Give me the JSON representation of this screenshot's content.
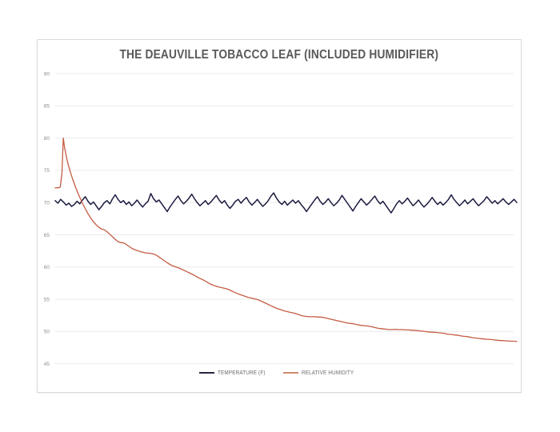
{
  "page": {
    "background": "#ffffff"
  },
  "card": {
    "border_color": "#dadada",
    "background": "#ffffff"
  },
  "chart_data": {
    "type": "line",
    "title": "THE DEAUVILLE TOBACCO LEAF (INCLUDED HUMIDIFIER)",
    "title_color": "#595959",
    "xlabel": "",
    "ylabel": "",
    "x_axis": {
      "tick_labels_visible": false,
      "domain_percent": [
        0,
        100
      ]
    },
    "y_axis": {
      "ticks": [
        90,
        85,
        80,
        75,
        70,
        65,
        60,
        55,
        50,
        45
      ],
      "range": [
        44.2,
        92.2
      ],
      "label_color": "#8c8c8c"
    },
    "grid": {
      "horizontal": true,
      "vertical": false,
      "color": "#ebebeb"
    },
    "legend": {
      "position": "bottom-center",
      "entries": [
        {
          "label": "TEMPERATURE (F)",
          "color": "#1b1b40",
          "swatch_color": "#26263f"
        },
        {
          "label": "RELATIVE HUMIDITY",
          "color": "#c45c44",
          "swatch_color": "#cf8a70"
        }
      ]
    },
    "series": [
      {
        "name": "TEMPERATURE (F)",
        "color": "#1b1b40",
        "stroke_width": 1.5,
        "x_mode": "even",
        "values": [
          70.3,
          69.9,
          70.5,
          70.1,
          69.6,
          69.9,
          69.4,
          69.7,
          70.2,
          69.8,
          70.4,
          70.9,
          70.2,
          69.7,
          70.1,
          69.5,
          68.9,
          69.4,
          70.0,
          70.3,
          69.8,
          70.6,
          71.2,
          70.5,
          70.0,
          70.3,
          69.7,
          70.1,
          69.5,
          69.9,
          70.4,
          69.8,
          69.3,
          69.8,
          70.2,
          71.4,
          70.6,
          70.1,
          70.4,
          69.8,
          69.2,
          68.6,
          69.3,
          69.9,
          70.5,
          71.0,
          70.3,
          69.8,
          70.2,
          70.7,
          71.3,
          70.6,
          70.0,
          69.5,
          69.9,
          70.3,
          69.7,
          70.1,
          70.6,
          71.1,
          70.4,
          69.9,
          70.3,
          69.6,
          69.1,
          69.6,
          70.2,
          70.5,
          69.9,
          70.4,
          70.8,
          70.1,
          69.6,
          70.0,
          70.5,
          69.9,
          69.4,
          69.8,
          70.3,
          71.0,
          71.5,
          70.7,
          70.1,
          69.7,
          70.2,
          69.6,
          70.0,
          70.4,
          69.9,
          70.3,
          69.7,
          69.2,
          68.6,
          69.2,
          69.8,
          70.4,
          70.9,
          70.2,
          69.7,
          70.1,
          70.6,
          70.0,
          69.5,
          69.9,
          70.4,
          71.1,
          70.5,
          69.9,
          69.3,
          68.7,
          69.4,
          70.0,
          70.6,
          70.1,
          69.6,
          70.0,
          70.5,
          71.0,
          70.3,
          69.8,
          70.2,
          69.6,
          69.0,
          68.4,
          69.1,
          69.8,
          70.3,
          69.8,
          70.2,
          70.7,
          70.1,
          69.5,
          69.9,
          70.4,
          69.8,
          69.3,
          69.7,
          70.2,
          70.8,
          70.2,
          69.7,
          70.1,
          69.6,
          70.0,
          70.5,
          71.2,
          70.5,
          70.0,
          69.5,
          69.9,
          70.4,
          69.8,
          70.2,
          70.6,
          70.0,
          69.5,
          69.9,
          70.3,
          70.9,
          70.4,
          69.9,
          70.3,
          69.8,
          70.2,
          70.6,
          70.1,
          69.7,
          70.1,
          70.5,
          70.0
        ]
      },
      {
        "name": "RELATIVE HUMIDITY",
        "color": "#c45c44",
        "stroke_width": 1.3,
        "x_mode": "pairs",
        "points": [
          [
            0,
            72.3
          ],
          [
            0.7,
            72.3
          ],
          [
            1.1,
            72.4
          ],
          [
            1.45,
            74.5
          ],
          [
            1.75,
            80.0
          ],
          [
            2.05,
            78.5
          ],
          [
            2.45,
            77.0
          ],
          [
            2.8,
            75.9
          ],
          [
            3.3,
            74.7
          ],
          [
            3.85,
            73.5
          ],
          [
            4.4,
            72.4
          ],
          [
            4.9,
            71.5
          ],
          [
            5.4,
            70.7
          ],
          [
            5.9,
            69.9
          ],
          [
            6.4,
            69.2
          ],
          [
            7.0,
            68.4
          ],
          [
            7.6,
            67.7
          ],
          [
            8.2,
            67.1
          ],
          [
            8.8,
            66.6
          ],
          [
            9.4,
            66.2
          ],
          [
            10.0,
            65.9
          ],
          [
            10.6,
            65.8
          ],
          [
            11.2,
            65.5
          ],
          [
            11.8,
            65.1
          ],
          [
            12.4,
            64.7
          ],
          [
            13.0,
            64.3
          ],
          [
            13.6,
            63.95
          ],
          [
            14.2,
            63.8
          ],
          [
            14.8,
            63.75
          ],
          [
            15.4,
            63.5
          ],
          [
            16.0,
            63.2
          ],
          [
            16.6,
            62.9
          ],
          [
            17.2,
            62.7
          ],
          [
            17.8,
            62.55
          ],
          [
            18.4,
            62.4
          ],
          [
            19.0,
            62.3
          ],
          [
            19.6,
            62.2
          ],
          [
            20.2,
            62.15
          ],
          [
            20.8,
            62.1
          ],
          [
            21.4,
            62.0
          ],
          [
            22.0,
            61.8
          ],
          [
            22.6,
            61.5
          ],
          [
            23.2,
            61.2
          ],
          [
            23.8,
            60.9
          ],
          [
            24.4,
            60.6
          ],
          [
            25.0,
            60.35
          ],
          [
            25.6,
            60.15
          ],
          [
            26.2,
            60.0
          ],
          [
            26.8,
            59.85
          ],
          [
            27.4,
            59.65
          ],
          [
            28.0,
            59.45
          ],
          [
            28.6,
            59.25
          ],
          [
            29.2,
            59.05
          ],
          [
            29.8,
            58.85
          ],
          [
            30.4,
            58.6
          ],
          [
            31.0,
            58.35
          ],
          [
            31.6,
            58.15
          ],
          [
            32.2,
            57.95
          ],
          [
            32.8,
            57.7
          ],
          [
            33.4,
            57.45
          ],
          [
            34.0,
            57.25
          ],
          [
            34.6,
            57.1
          ],
          [
            35.2,
            56.95
          ],
          [
            35.8,
            56.85
          ],
          [
            36.4,
            56.75
          ],
          [
            37.0,
            56.65
          ],
          [
            37.6,
            56.5
          ],
          [
            38.2,
            56.3
          ],
          [
            38.8,
            56.1
          ],
          [
            39.4,
            55.9
          ],
          [
            40.0,
            55.75
          ],
          [
            40.6,
            55.6
          ],
          [
            41.2,
            55.45
          ],
          [
            41.8,
            55.3
          ],
          [
            42.4,
            55.2
          ],
          [
            43.0,
            55.1
          ],
          [
            43.6,
            55.0
          ],
          [
            44.2,
            54.85
          ],
          [
            44.8,
            54.65
          ],
          [
            45.4,
            54.45
          ],
          [
            46.0,
            54.25
          ],
          [
            46.6,
            54.05
          ],
          [
            47.2,
            53.85
          ],
          [
            47.8,
            53.65
          ],
          [
            48.4,
            53.5
          ],
          [
            49.0,
            53.35
          ],
          [
            49.6,
            53.2
          ],
          [
            50.2,
            53.1
          ],
          [
            50.8,
            53.0
          ],
          [
            51.4,
            52.9
          ],
          [
            52.0,
            52.8
          ],
          [
            52.6,
            52.65
          ],
          [
            53.2,
            52.5
          ],
          [
            53.8,
            52.4
          ],
          [
            54.4,
            52.35
          ],
          [
            55.0,
            52.3
          ],
          [
            55.6,
            52.3
          ],
          [
            56.2,
            52.3
          ],
          [
            56.8,
            52.25
          ],
          [
            57.4,
            52.25
          ],
          [
            58.0,
            52.2
          ],
          [
            58.6,
            52.1
          ],
          [
            59.2,
            52.0
          ],
          [
            59.8,
            51.9
          ],
          [
            60.4,
            51.8
          ],
          [
            61.0,
            51.7
          ],
          [
            61.6,
            51.6
          ],
          [
            62.2,
            51.5
          ],
          [
            62.8,
            51.4
          ],
          [
            63.4,
            51.3
          ],
          [
            64.0,
            51.25
          ],
          [
            64.6,
            51.2
          ],
          [
            65.2,
            51.1
          ],
          [
            65.8,
            51.0
          ],
          [
            66.4,
            50.95
          ],
          [
            67.0,
            50.9
          ],
          [
            67.6,
            50.85
          ],
          [
            68.2,
            50.8
          ],
          [
            68.8,
            50.7
          ],
          [
            69.4,
            50.6
          ],
          [
            70.0,
            50.5
          ],
          [
            70.6,
            50.45
          ],
          [
            71.2,
            50.4
          ],
          [
            71.8,
            50.35
          ],
          [
            72.4,
            50.3
          ],
          [
            73.0,
            50.3
          ],
          [
            73.6,
            50.35
          ],
          [
            74.2,
            50.3
          ],
          [
            74.8,
            50.3
          ],
          [
            75.4,
            50.3
          ],
          [
            76.0,
            50.25
          ],
          [
            76.6,
            50.25
          ],
          [
            77.2,
            50.2
          ],
          [
            77.8,
            50.2
          ],
          [
            78.4,
            50.15
          ],
          [
            79.0,
            50.1
          ],
          [
            79.6,
            50.05
          ],
          [
            80.2,
            50.0
          ],
          [
            80.8,
            49.95
          ],
          [
            81.4,
            49.9
          ],
          [
            82.0,
            49.9
          ],
          [
            82.6,
            49.85
          ],
          [
            83.2,
            49.8
          ],
          [
            83.8,
            49.75
          ],
          [
            84.4,
            49.7
          ],
          [
            85.0,
            49.6
          ],
          [
            85.6,
            49.55
          ],
          [
            86.2,
            49.5
          ],
          [
            86.8,
            49.45
          ],
          [
            87.4,
            49.4
          ],
          [
            88.0,
            49.3
          ],
          [
            88.6,
            49.25
          ],
          [
            89.2,
            49.2
          ],
          [
            89.8,
            49.15
          ],
          [
            90.4,
            49.05
          ],
          [
            91.0,
            49.0
          ],
          [
            91.6,
            48.95
          ],
          [
            92.2,
            48.9
          ],
          [
            92.8,
            48.85
          ],
          [
            93.4,
            48.8
          ],
          [
            94.0,
            48.8
          ],
          [
            94.6,
            48.75
          ],
          [
            95.2,
            48.7
          ],
          [
            95.8,
            48.65
          ],
          [
            96.4,
            48.6
          ],
          [
            97.0,
            48.6
          ],
          [
            97.6,
            48.55
          ],
          [
            98.2,
            48.55
          ],
          [
            98.8,
            48.5
          ],
          [
            99.4,
            48.5
          ],
          [
            100,
            48.45
          ]
        ]
      }
    ]
  }
}
